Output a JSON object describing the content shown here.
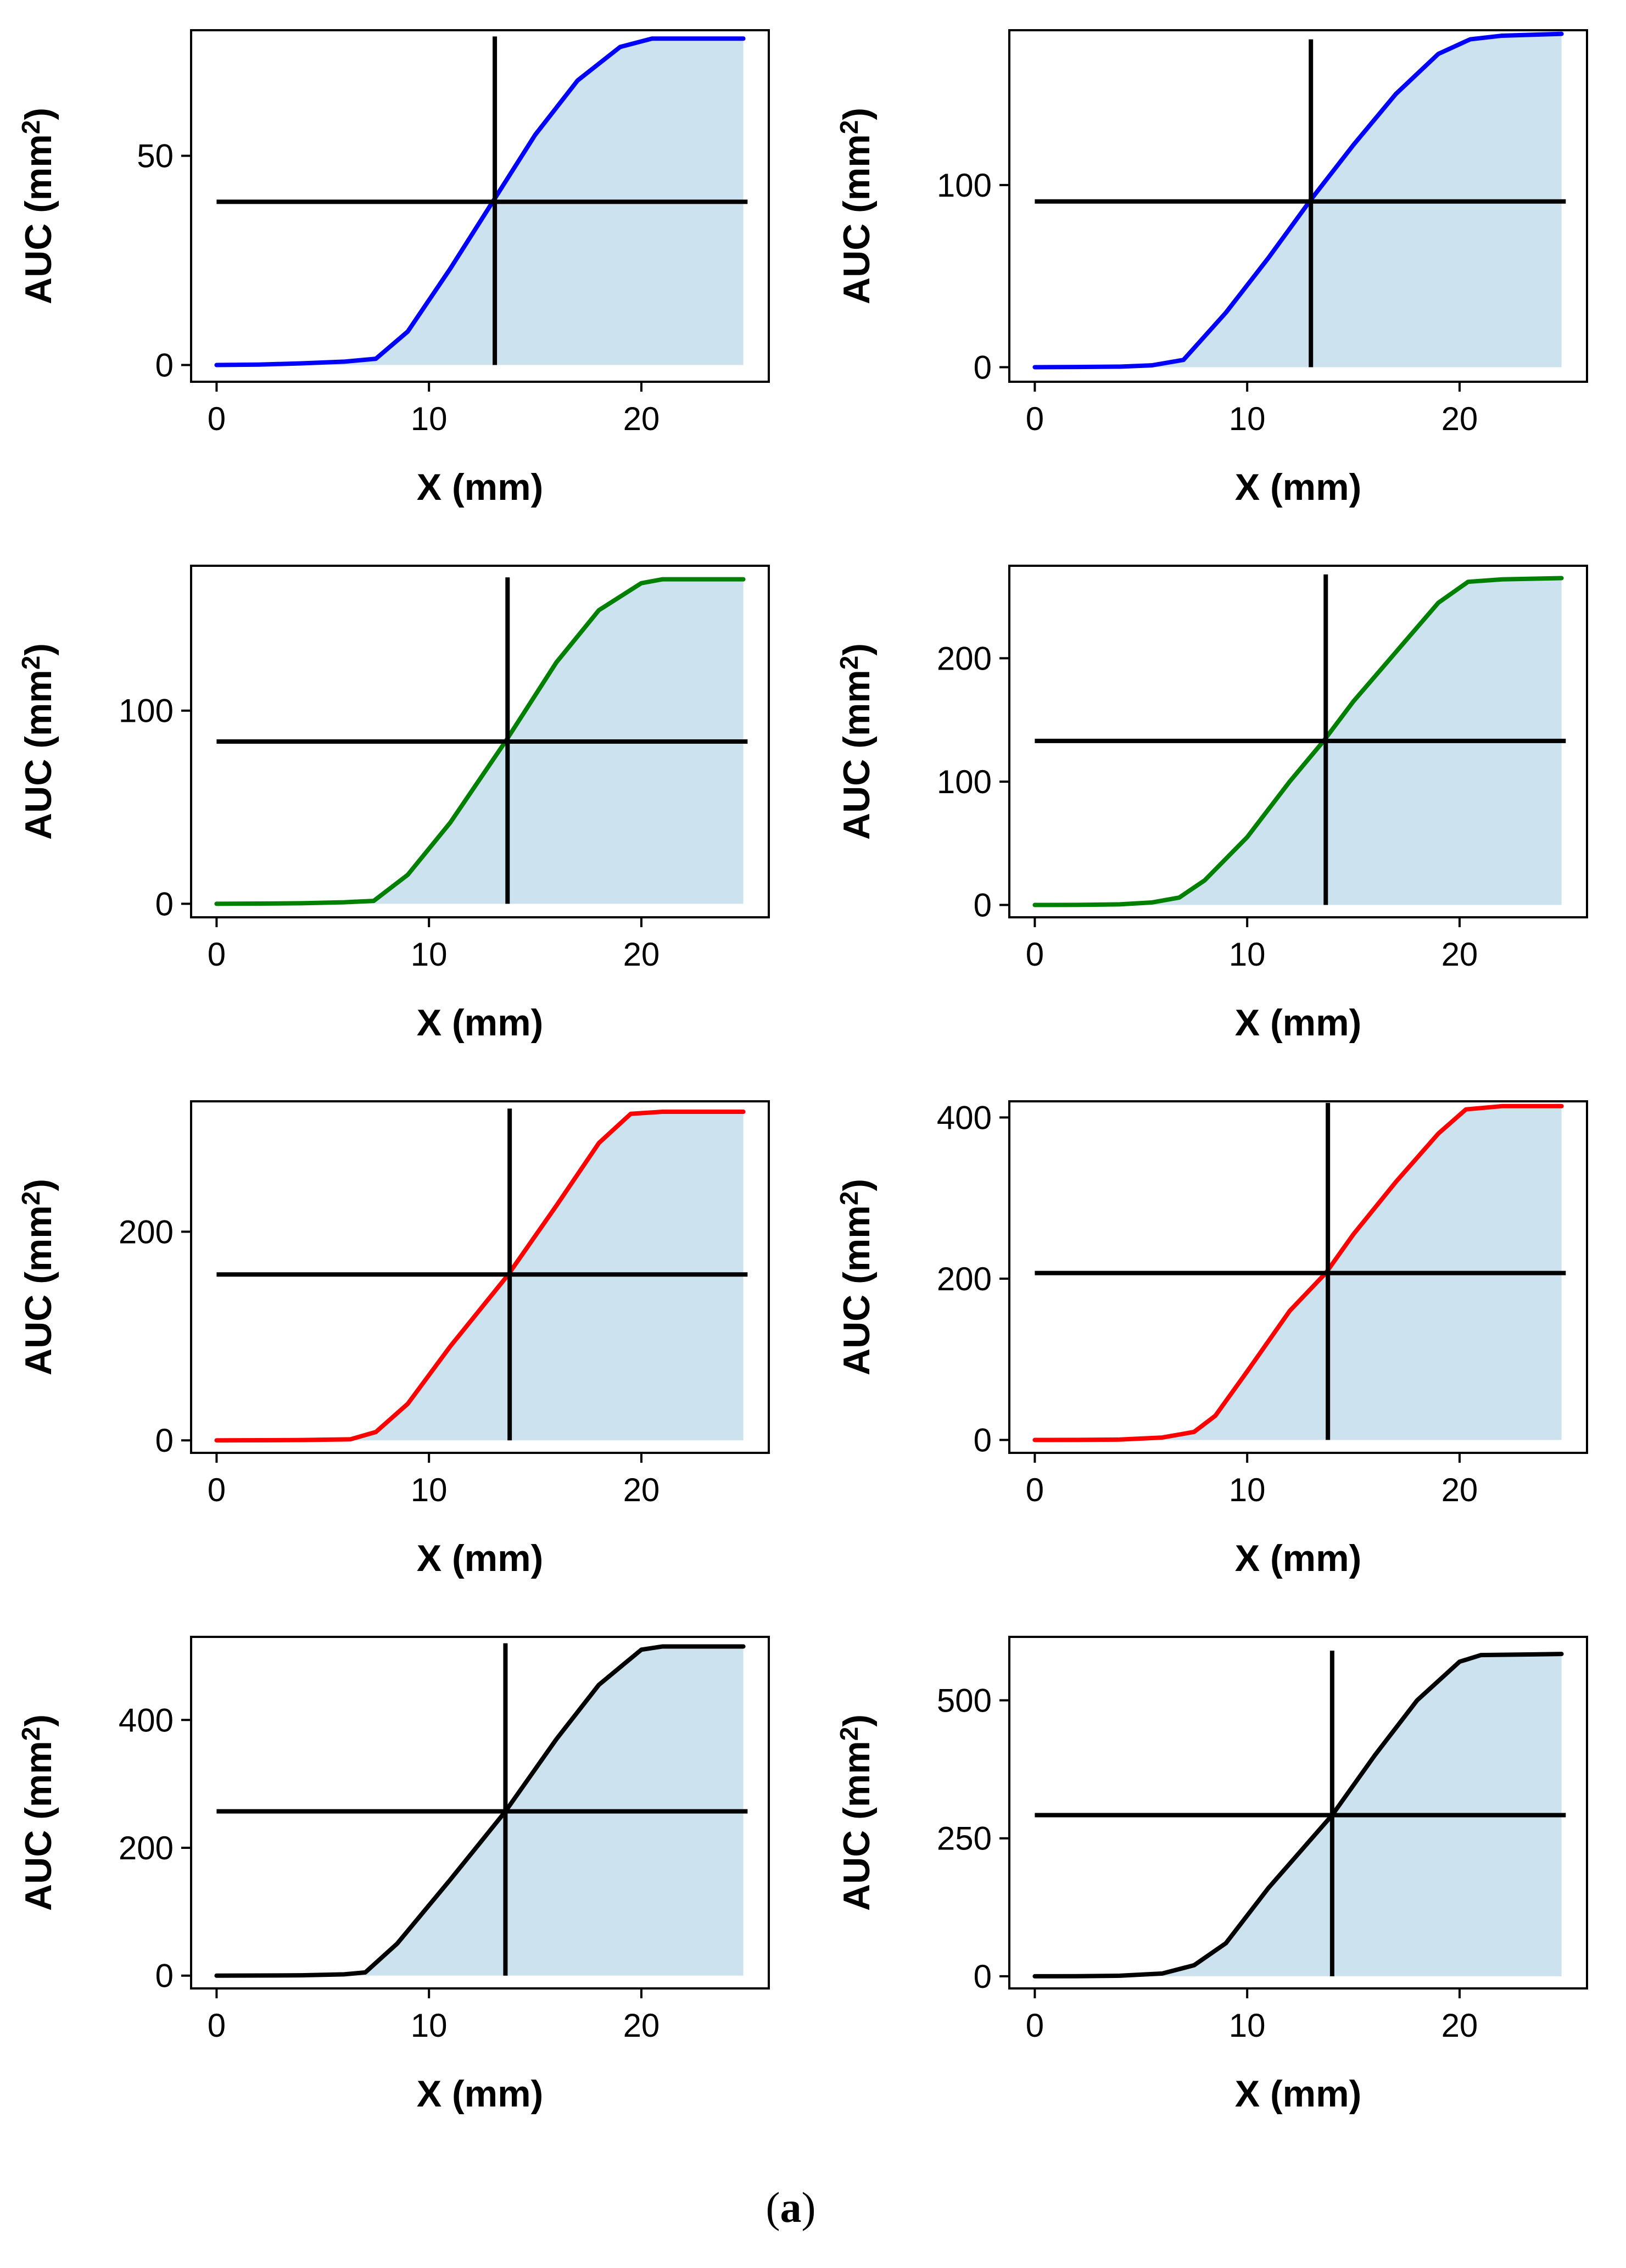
{
  "caption": {
    "open": "(",
    "letter": "a",
    "close": ")"
  },
  "fill_color": "#cce3ef",
  "chart_data": [
    {
      "type": "area",
      "color": "#0000ff",
      "xlabel": "X (mm)",
      "ylabel": "AUC (mm",
      "ylabel_sup": "2",
      "ylabel_close": ")",
      "xlim": [
        -1.2,
        26.0
      ],
      "ylim": [
        -4,
        80
      ],
      "xticks": [
        0,
        10,
        20
      ],
      "yticks": [
        0,
        50
      ],
      "x": [
        0,
        2,
        4,
        6,
        7.5,
        9,
        11,
        13,
        15,
        17,
        19,
        20.5,
        21.5,
        23,
        24.8
      ],
      "y": [
        0,
        0.1,
        0.4,
        0.8,
        1.5,
        8,
        23,
        39,
        55,
        68,
        76,
        78,
        78,
        78,
        78
      ],
      "vline": {
        "x": 13.1,
        "y": [
          0,
          78.5
        ]
      },
      "hline": {
        "y": 39,
        "x": [
          0,
          25
        ]
      }
    },
    {
      "type": "area",
      "color": "#0000ff",
      "xlabel": "X (mm)",
      "ylabel": "AUC (mm",
      "ylabel_sup": "2",
      "ylabel_close": ")",
      "xlim": [
        -1.2,
        26.0
      ],
      "ylim": [
        -8,
        185
      ],
      "xticks": [
        0,
        10,
        20
      ],
      "yticks": [
        0,
        100
      ],
      "x": [
        0,
        2,
        4,
        5.5,
        7,
        9,
        11,
        13,
        15,
        17,
        19,
        20.5,
        22,
        24.8
      ],
      "y": [
        0,
        0.1,
        0.3,
        1,
        4,
        30,
        60,
        92,
        122,
        150,
        172,
        180,
        182,
        183
      ],
      "vline": {
        "x": 13.0,
        "y": [
          0,
          180
        ]
      },
      "hline": {
        "y": 91,
        "x": [
          0,
          25
        ]
      }
    },
    {
      "type": "area",
      "color": "#008000",
      "xlabel": "X (mm)",
      "ylabel": "AUC (mm",
      "ylabel_sup": "2",
      "ylabel_close": ")",
      "xlim": [
        -1.2,
        26.0
      ],
      "ylim": [
        -7,
        175
      ],
      "xticks": [
        0,
        10,
        20
      ],
      "yticks": [
        0,
        100
      ],
      "x": [
        0,
        2,
        4,
        6,
        7.4,
        9,
        11,
        13.6,
        16,
        18,
        20,
        21,
        23,
        24.8
      ],
      "y": [
        0,
        0.1,
        0.3,
        0.8,
        1.5,
        15,
        42,
        84,
        125,
        152,
        166,
        168,
        168,
        168
      ],
      "vline": {
        "x": 13.7,
        "y": [
          0,
          169
        ]
      },
      "hline": {
        "y": 84,
        "x": [
          0,
          25
        ]
      }
    },
    {
      "type": "area",
      "color": "#008000",
      "xlabel": "X (mm)",
      "ylabel": "AUC (mm",
      "ylabel_sup": "2",
      "ylabel_close": ")",
      "xlim": [
        -1.2,
        26.0
      ],
      "ylim": [
        -10,
        275
      ],
      "xticks": [
        0,
        10,
        20
      ],
      "yticks": [
        0,
        100,
        200
      ],
      "x": [
        0,
        2,
        4,
        5.5,
        6.8,
        8,
        10,
        12,
        13.6,
        15,
        17,
        19,
        20.4,
        22,
        24.8
      ],
      "y": [
        0,
        0.1,
        0.5,
        2,
        6,
        20,
        55,
        100,
        133,
        165,
        205,
        245,
        262,
        264,
        265
      ],
      "vline": {
        "x": 13.7,
        "y": [
          0,
          268
        ]
      },
      "hline": {
        "y": 133,
        "x": [
          0,
          25
        ]
      }
    },
    {
      "type": "area",
      "color": "#ff0000",
      "xlabel": "X (mm)",
      "ylabel": "AUC (mm",
      "ylabel_sup": "2",
      "ylabel_close": ")",
      "xlim": [
        -1.2,
        26.0
      ],
      "ylim": [
        -12,
        325
      ],
      "xticks": [
        0,
        10,
        20
      ],
      "yticks": [
        0,
        200
      ],
      "x": [
        0,
        2,
        4,
        6.3,
        7.5,
        9,
        11,
        13.7,
        16,
        18,
        19.5,
        21,
        23,
        24.8
      ],
      "y": [
        0,
        0.1,
        0.3,
        1,
        8,
        35,
        90,
        158,
        225,
        285,
        313,
        315,
        315,
        315
      ],
      "vline": {
        "x": 13.8,
        "y": [
          0,
          318
        ]
      },
      "hline": {
        "y": 159,
        "x": [
          0,
          25
        ]
      }
    },
    {
      "type": "area",
      "color": "#ff0000",
      "xlabel": "X (mm)",
      "ylabel": "AUC (mm",
      "ylabel_sup": "2",
      "ylabel_close": ")",
      "xlim": [
        -1.2,
        26.0
      ],
      "ylim": [
        -16,
        420
      ],
      "xticks": [
        0,
        10,
        20
      ],
      "yticks": [
        0,
        200,
        400
      ],
      "x": [
        0,
        2,
        4,
        6,
        7.5,
        8.5,
        10,
        12,
        13.7,
        15,
        17,
        19,
        20.3,
        22,
        24.8
      ],
      "y": [
        0,
        0.1,
        0.5,
        3,
        10,
        30,
        85,
        160,
        207,
        255,
        320,
        380,
        410,
        414,
        414
      ],
      "vline": {
        "x": 13.8,
        "y": [
          0,
          418
        ]
      },
      "hline": {
        "y": 207,
        "x": [
          0,
          25
        ]
      }
    },
    {
      "type": "area",
      "color": "#000000",
      "xlabel": "X (mm)",
      "ylabel": "AUC (mm",
      "ylabel_sup": "2",
      "ylabel_close": ")",
      "xlim": [
        -1.2,
        26.0
      ],
      "ylim": [
        -20,
        530
      ],
      "xticks": [
        0,
        10,
        20
      ],
      "yticks": [
        0,
        200,
        400
      ],
      "x": [
        0,
        2,
        4,
        6,
        7,
        8.5,
        11,
        13.6,
        16,
        18,
        20,
        21,
        23,
        24.8
      ],
      "y": [
        0,
        0.2,
        0.5,
        2,
        5,
        50,
        150,
        257,
        370,
        455,
        510,
        515,
        515,
        515
      ],
      "vline": {
        "x": 13.6,
        "y": [
          0,
          520
        ]
      },
      "hline": {
        "y": 257,
        "x": [
          0,
          25
        ]
      }
    },
    {
      "type": "area",
      "color": "#000000",
      "xlabel": "X (mm)",
      "ylabel": "AUC (mm",
      "ylabel_sup": "2",
      "ylabel_close": ")",
      "xlim": [
        -1.2,
        26.0
      ],
      "ylim": [
        -22,
        615
      ],
      "xticks": [
        0,
        10,
        20
      ],
      "yticks": [
        0,
        250,
        500
      ],
      "x": [
        0,
        2,
        4,
        6,
        7.5,
        9,
        11,
        14,
        16,
        18,
        20,
        21,
        23,
        24.8
      ],
      "y": [
        0,
        0.2,
        1,
        5,
        20,
        60,
        160,
        292,
        400,
        500,
        570,
        582,
        583,
        584
      ],
      "vline": {
        "x": 14.0,
        "y": [
          0,
          590
        ]
      },
      "hline": {
        "y": 292,
        "x": [
          0,
          25
        ]
      }
    }
  ]
}
